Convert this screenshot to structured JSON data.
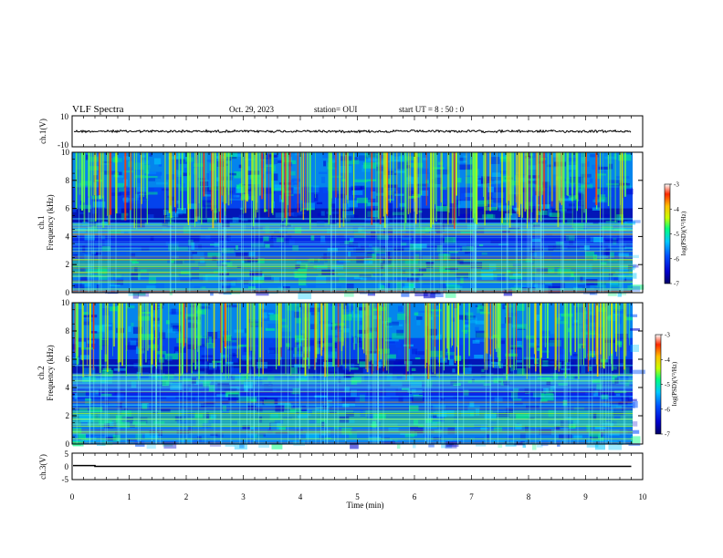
{
  "header": {
    "title": "VLF Spectra",
    "date": "Oct. 29, 2023",
    "station": "station= OUI",
    "start": "start  UT =   8 : 50 : 0"
  },
  "colors": {
    "colormap": [
      "#000066",
      "#0000cc",
      "#0050ff",
      "#00c8ff",
      "#00ff7f",
      "#c8ff00",
      "#ffbf00",
      "#ff2a00",
      "#ffffff"
    ]
  },
  "chart_data": [
    {
      "type": "line",
      "name": "ch1-waveform",
      "ylabel": "ch.1(V)",
      "ylim": [
        -10,
        10
      ],
      "yticks": [
        "10",
        "-10"
      ],
      "xlim": [
        0,
        10
      ],
      "level": 0,
      "amplitude_pp": 1.6
    },
    {
      "type": "heatmap",
      "name": "ch1-spectrogram",
      "ylabel": "ch.1\nFrequency (kHz)",
      "ylim": [
        0,
        10
      ],
      "yticks": [
        "0",
        "2",
        "4",
        "6",
        "8",
        "10"
      ],
      "xlim": [
        0,
        9.8
      ],
      "colorbar": {
        "label": "log(PSD)(V²/Hz)",
        "range": [
          -7,
          -3
        ],
        "ticks": [
          "-3",
          "-4",
          "-5",
          "-6",
          "-7"
        ]
      },
      "bands_khz": [
        0.3,
        0.8,
        1.2,
        1.5,
        1.9,
        2.4,
        3.0,
        3.5,
        4.2,
        4.5,
        4.9,
        5.3
      ],
      "notes": "impulsive broadband sferics extending from ~5 kHz to 10 kHz, strong emission 1–2 kHz"
    },
    {
      "type": "heatmap",
      "name": "ch2-spectrogram",
      "ylabel": "ch.2\nFrequency (kHz)",
      "ylim": [
        0,
        10
      ],
      "yticks": [
        "0",
        "2",
        "4",
        "6",
        "8",
        "10"
      ],
      "xlim": [
        0,
        9.8
      ],
      "colorbar": {
        "label": "log(PSD)(V²/Hz)",
        "range": [
          -7,
          -3
        ],
        "ticks": [
          "-3",
          "-4",
          "-5",
          "-6",
          "-7"
        ]
      },
      "bands_khz": [
        0.4,
        0.9,
        1.3,
        1.8,
        2.2,
        2.8,
        3.4,
        4.0,
        4.5,
        4.9,
        5.6
      ],
      "notes": "impulsive broadband sferics extending from ~5 kHz to 10 kHz, strong emission 1–2.5 kHz"
    },
    {
      "type": "line",
      "name": "ch3-waveform",
      "ylabel": "ch.3(V)",
      "ylim": [
        -5,
        5
      ],
      "yticks": [
        "5",
        "0",
        "-5"
      ],
      "xlim": [
        0,
        10
      ],
      "step": {
        "x_end": 0.4,
        "level_start": 0.3,
        "level_after": 0
      }
    }
  ],
  "xaxis": {
    "label": "Time (min)",
    "ticks": [
      "0",
      "1",
      "2",
      "3",
      "4",
      "5",
      "6",
      "7",
      "8",
      "9",
      "10"
    ]
  }
}
